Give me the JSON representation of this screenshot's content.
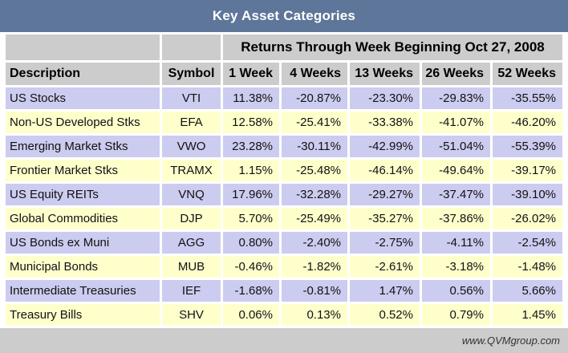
{
  "title": "Key Asset Categories",
  "returns_header": "Returns Through Week Beginning Oct 27, 2008",
  "footer_url": "www.QVMgroup.com",
  "colors": {
    "title_bar": "#5d7699",
    "header_gray": "#cccccc",
    "row_lavender": "#ccccf0",
    "row_yellow": "#ffffcc",
    "title_text": "#ffffff"
  },
  "chart_data": {
    "type": "table",
    "columns": [
      "Description",
      "Symbol",
      "1 Week",
      "4 Weeks",
      "13 Weeks",
      "26 Weeks",
      "52 Weeks"
    ],
    "rows": [
      {
        "description": "US Stocks",
        "symbol": "VTI",
        "values": [
          "11.38%",
          "-20.87%",
          "-23.30%",
          "-29.83%",
          "-35.55%"
        ]
      },
      {
        "description": "Non-US Developed Stks",
        "symbol": "EFA",
        "values": [
          "12.58%",
          "-25.41%",
          "-33.38%",
          "-41.07%",
          "-46.20%"
        ]
      },
      {
        "description": "Emerging Market Stks",
        "symbol": "VWO",
        "values": [
          "23.28%",
          "-30.11%",
          "-42.99%",
          "-51.04%",
          "-55.39%"
        ]
      },
      {
        "description": "Frontier Market Stks",
        "symbol": "TRAMX",
        "values": [
          "1.15%",
          "-25.48%",
          "-46.14%",
          "-49.64%",
          "-39.17%"
        ]
      },
      {
        "description": "US Equity REITs",
        "symbol": "VNQ",
        "values": [
          "17.96%",
          "-32.28%",
          "-29.27%",
          "-37.47%",
          "-39.10%"
        ]
      },
      {
        "description": "Global Commodities",
        "symbol": "DJP",
        "values": [
          "5.70%",
          "-25.49%",
          "-35.27%",
          "-37.86%",
          "-26.02%"
        ]
      },
      {
        "description": "US Bonds ex Muni",
        "symbol": "AGG",
        "values": [
          "0.80%",
          "-2.40%",
          "-2.75%",
          "-4.11%",
          "-2.54%"
        ]
      },
      {
        "description": "Municipal Bonds",
        "symbol": "MUB",
        "values": [
          "-0.46%",
          "-1.82%",
          "-2.61%",
          "-3.18%",
          "-1.48%"
        ]
      },
      {
        "description": "Intermediate Treasuries",
        "symbol": "IEF",
        "values": [
          "-1.68%",
          "-0.81%",
          "1.47%",
          "0.56%",
          "5.66%"
        ]
      },
      {
        "description": "Treasury Bills",
        "symbol": "SHV",
        "values": [
          "0.06%",
          "0.13%",
          "0.52%",
          "0.79%",
          "1.45%"
        ]
      }
    ]
  }
}
